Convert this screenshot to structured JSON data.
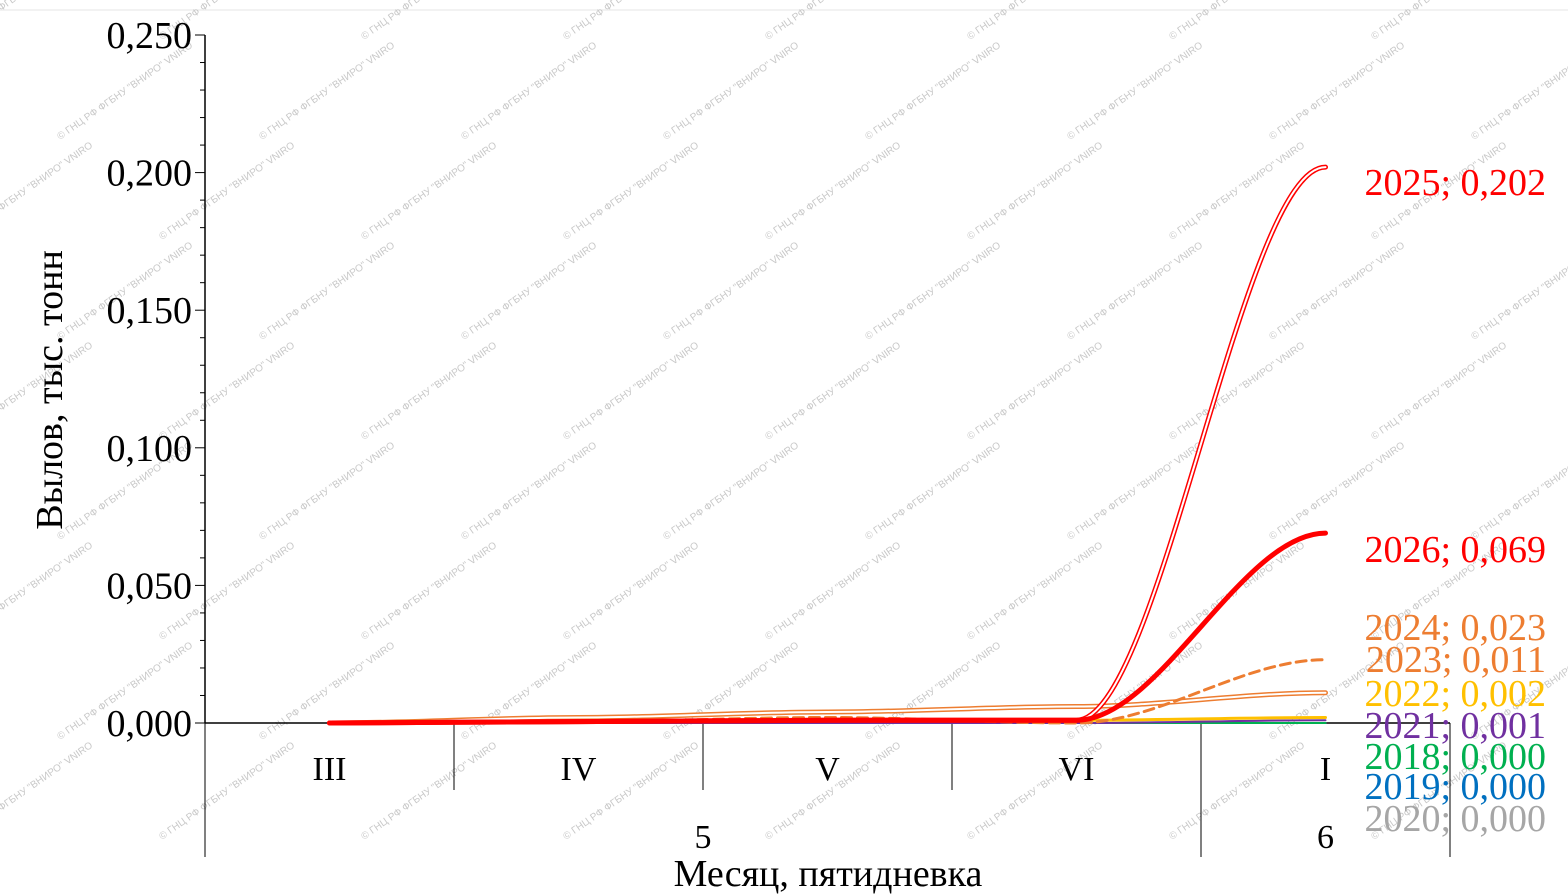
{
  "chart_data": {
    "type": "line",
    "ylabel": "Вылов, тыс. тонн",
    "xlabel": "Месяц, пятидневка",
    "ylim": [
      0,
      0.25
    ],
    "yticks": [
      "0,000",
      "0,050",
      "0,100",
      "0,150",
      "0,200",
      "0,250"
    ],
    "categories": [
      "III",
      "IV",
      "V",
      "VI",
      "I"
    ],
    "month_groups": [
      {
        "label": "5",
        "span": [
          0,
          3
        ]
      },
      {
        "label": "6",
        "span": [
          4,
          4
        ]
      }
    ],
    "grid": false,
    "watermark": "© ГНЦ РФ ФГБНУ \"ВНИРО\" VNIRO",
    "series": [
      {
        "name": "2020",
        "color": "#a6a6a6",
        "style": "solid",
        "width": 2,
        "values": [
          0,
          0,
          0,
          0,
          0
        ],
        "end_label": "2020; 0,000"
      },
      {
        "name": "2019",
        "color": "#0070c0",
        "style": "solid",
        "width": 2,
        "values": [
          0,
          0,
          0,
          0,
          0
        ],
        "end_label": "2019; 0,000"
      },
      {
        "name": "2018",
        "color": "#00b050",
        "style": "solid",
        "width": 2,
        "values": [
          0,
          0,
          0,
          0,
          0
        ],
        "end_label": "2018; 0,000"
      },
      {
        "name": "2021",
        "color": "#7030a0",
        "style": "solid",
        "width": 2,
        "values": [
          0,
          0,
          0,
          0,
          0.001
        ],
        "end_label": "2021; 0,001"
      },
      {
        "name": "2022",
        "color": "#ffc000",
        "style": "solid",
        "width": 3,
        "values": [
          0,
          0.0005,
          0.001,
          0.001,
          0.002
        ],
        "end_label": "2022; 0,002"
      },
      {
        "name": "2023",
        "color": "#ed7d31",
        "style": "double",
        "width": 2,
        "values": [
          0,
          0.002,
          0.004,
          0.006,
          0.011
        ],
        "end_label": "2023; 0,011"
      },
      {
        "name": "2024",
        "color": "#ed7d31",
        "style": "dashed",
        "width": 3,
        "values": [
          0,
          0.0005,
          0.002,
          0,
          0.023
        ],
        "end_label": "2024; 0,023"
      },
      {
        "name": "2025",
        "color": "#ff0000",
        "style": "double",
        "width": 2,
        "values": [
          0,
          0.0005,
          0.001,
          0.001,
          0.202
        ],
        "end_label": "2025; 0,202"
      },
      {
        "name": "2026",
        "color": "#ff0000",
        "style": "solid",
        "width": 5,
        "values": [
          0,
          0.0005,
          0.001,
          0.001,
          0.069
        ],
        "end_label": "2026; 0,069"
      }
    ]
  }
}
